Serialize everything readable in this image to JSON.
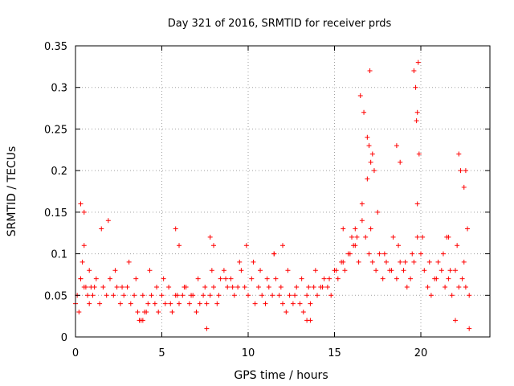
{
  "chart_data": {
    "type": "scatter",
    "title": "Day 321 of 2016, SRMTID for receiver prds",
    "xlabel": "GPS time / hours",
    "ylabel": "SRMTID / TECUs",
    "xlim": [
      0,
      24
    ],
    "ylim": [
      0,
      0.35
    ],
    "xticks": [
      0,
      5,
      10,
      15,
      20
    ],
    "yticks": [
      0,
      0.05,
      0.1,
      0.15,
      0.2,
      0.25,
      0.3,
      0.35
    ],
    "xtick_labels": [
      "0",
      "5",
      "10",
      "15",
      "20"
    ],
    "ytick_labels": [
      "0",
      "0.05",
      "0.1",
      "0.15",
      "0.2",
      "0.25",
      "0.3",
      "0.35"
    ],
    "grid": true,
    "marker": "+",
    "color": "#ff0000",
    "series": [
      {
        "name": "prds",
        "x": [
          0.0,
          0.1,
          0.2,
          0.3,
          0.4,
          0.5,
          0.6,
          0.7,
          0.8,
          0.9,
          1.0,
          1.2,
          1.4,
          1.6,
          1.8,
          2.0,
          2.2,
          2.4,
          2.6,
          2.8,
          3.0,
          3.2,
          3.4,
          3.6,
          3.8,
          4.0,
          4.2,
          4.4,
          4.6,
          4.8,
          5.0,
          5.2,
          5.4,
          5.6,
          5.8,
          6.0,
          6.2,
          6.4,
          6.6,
          6.8,
          7.0,
          7.2,
          7.4,
          7.6,
          7.8,
          8.0,
          8.2,
          8.4,
          8.6,
          8.8,
          9.0,
          9.2,
          9.4,
          9.6,
          9.8,
          10.0,
          10.2,
          10.4,
          10.6,
          10.8,
          11.0,
          11.2,
          11.4,
          11.6,
          11.8,
          12.0,
          12.2,
          12.4,
          12.6,
          12.8,
          13.0,
          13.2,
          13.4,
          13.6,
          13.8,
          14.0,
          14.2,
          14.4,
          14.6,
          14.8,
          15.0,
          15.2,
          15.4,
          15.6,
          15.8,
          16.0,
          16.2,
          16.4,
          16.6,
          16.8,
          17.0,
          17.1,
          17.2,
          17.4,
          17.6,
          17.8,
          18.0,
          18.2,
          18.4,
          18.6,
          18.8,
          19.0,
          19.2,
          19.4,
          19.6,
          19.8,
          20.0,
          20.2,
          20.4,
          20.6,
          20.8,
          21.0,
          21.2,
          21.4,
          21.6,
          21.8,
          22.0,
          22.2,
          22.4,
          22.6,
          22.8,
          0.3,
          0.5,
          0.8,
          1.1,
          1.5,
          1.9,
          2.3,
          2.7,
          3.1,
          3.5,
          3.9,
          4.3,
          4.7,
          5.1,
          5.5,
          5.9,
          6.3,
          6.7,
          7.1,
          7.5,
          7.9,
          8.3,
          8.7,
          9.1,
          9.5,
          9.9,
          10.3,
          10.7,
          11.1,
          11.5,
          11.9,
          12.3,
          12.7,
          13.1,
          13.5,
          13.9,
          14.3,
          14.7,
          15.1,
          15.5,
          15.9,
          16.3,
          16.6,
          16.9,
          17.2,
          17.5,
          17.9,
          18.3,
          18.7,
          19.1,
          19.5,
          19.8,
          20.1,
          20.5,
          20.9,
          21.3,
          21.7,
          22.1,
          22.5,
          22.7,
          16.5,
          16.7,
          16.9,
          17.0,
          17.1,
          17.3,
          17.05,
          19.6,
          19.7,
          19.75,
          19.8,
          19.85,
          19.9,
          22.2,
          22.3,
          22.5,
          22.6,
          18.6,
          18.8,
          5.8,
          6.0,
          7.8,
          8.0,
          11.5,
          12.0,
          15.5,
          16.1,
          16.2,
          21.5,
          21.6,
          0.5,
          0.3,
          3.7,
          3.9,
          4.1,
          13.4,
          13.6,
          7.6,
          22.0,
          22.8
        ],
        "y": [
          0.04,
          0.05,
          0.03,
          0.07,
          0.09,
          0.11,
          0.06,
          0.05,
          0.04,
          0.06,
          0.05,
          0.07,
          0.04,
          0.06,
          0.05,
          0.07,
          0.05,
          0.06,
          0.04,
          0.05,
          0.06,
          0.04,
          0.05,
          0.03,
          0.02,
          0.03,
          0.04,
          0.05,
          0.04,
          0.03,
          0.05,
          0.04,
          0.06,
          0.03,
          0.05,
          0.04,
          0.05,
          0.06,
          0.04,
          0.05,
          0.03,
          0.04,
          0.05,
          0.04,
          0.05,
          0.06,
          0.04,
          0.07,
          0.08,
          0.06,
          0.07,
          0.05,
          0.06,
          0.08,
          0.06,
          0.05,
          0.07,
          0.04,
          0.06,
          0.05,
          0.04,
          0.06,
          0.05,
          0.07,
          0.05,
          0.04,
          0.03,
          0.05,
          0.04,
          0.06,
          0.04,
          0.03,
          0.05,
          0.04,
          0.06,
          0.05,
          0.06,
          0.07,
          0.06,
          0.05,
          0.08,
          0.07,
          0.09,
          0.08,
          0.1,
          0.12,
          0.11,
          0.09,
          0.14,
          0.12,
          0.1,
          0.13,
          0.09,
          0.08,
          0.1,
          0.07,
          0.09,
          0.08,
          0.12,
          0.07,
          0.09,
          0.08,
          0.06,
          0.07,
          0.09,
          0.12,
          0.1,
          0.08,
          0.06,
          0.05,
          0.07,
          0.09,
          0.08,
          0.06,
          0.07,
          0.05,
          0.08,
          0.06,
          0.07,
          0.06,
          0.05,
          0.07,
          0.06,
          0.08,
          0.06,
          0.13,
          0.14,
          0.08,
          0.06,
          0.09,
          0.07,
          0.05,
          0.08,
          0.06,
          0.07,
          0.04,
          0.05,
          0.06,
          0.05,
          0.07,
          0.06,
          0.08,
          0.05,
          0.07,
          0.06,
          0.09,
          0.11,
          0.09,
          0.08,
          0.07,
          0.1,
          0.06,
          0.08,
          0.05,
          0.07,
          0.06,
          0.08,
          0.06,
          0.07,
          0.08,
          0.09,
          0.1,
          0.12,
          0.16,
          0.19,
          0.22,
          0.15,
          0.1,
          0.08,
          0.11,
          0.09,
          0.1,
          0.16,
          0.12,
          0.09,
          0.07,
          0.1,
          0.08,
          0.11,
          0.09,
          0.13,
          0.29,
          0.27,
          0.24,
          0.23,
          0.21,
          0.2,
          0.32,
          0.32,
          0.3,
          0.26,
          0.27,
          0.33,
          0.22,
          0.22,
          0.2,
          0.18,
          0.2,
          0.23,
          0.21,
          0.13,
          0.11,
          0.12,
          0.11,
          0.1,
          0.11,
          0.13,
          0.11,
          0.13,
          0.12,
          0.12,
          0.15,
          0.16,
          0.02,
          0.02,
          0.03,
          0.02,
          0.02,
          0.01,
          0.02,
          0.01
        ]
      }
    ]
  }
}
